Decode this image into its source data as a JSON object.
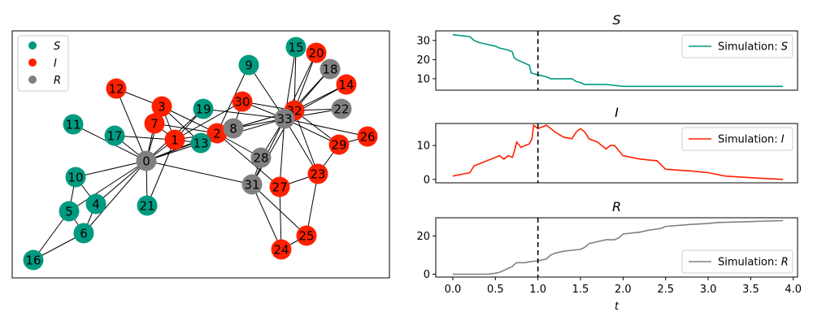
{
  "colors": {
    "S": "#009a80",
    "I": "#ff2000",
    "R": "#808080"
  },
  "network_legend": [
    {
      "key": "S",
      "label": "S"
    },
    {
      "key": "I",
      "label": "I"
    },
    {
      "key": "R",
      "label": "R"
    }
  ],
  "network": {
    "nodes": [
      {
        "id": "0",
        "state": "R",
        "pos": [
          180,
          198
        ]
      },
      {
        "id": "1",
        "state": "I",
        "pos": [
          215,
          172
        ]
      },
      {
        "id": "2",
        "state": "I",
        "pos": [
          267,
          164
        ]
      },
      {
        "id": "3",
        "state": "I",
        "pos": [
          199,
          131
        ]
      },
      {
        "id": "4",
        "state": "S",
        "pos": [
          118,
          251
        ]
      },
      {
        "id": "5",
        "state": "S",
        "pos": [
          85,
          260
        ]
      },
      {
        "id": "6",
        "state": "S",
        "pos": [
          103,
          287
        ]
      },
      {
        "id": "7",
        "state": "I",
        "pos": [
          190,
          152
        ]
      },
      {
        "id": "8",
        "state": "R",
        "pos": [
          287,
          158
        ]
      },
      {
        "id": "9",
        "state": "S",
        "pos": [
          306,
          80
        ]
      },
      {
        "id": "10",
        "state": "S",
        "pos": [
          93,
          218
        ]
      },
      {
        "id": "11",
        "state": "S",
        "pos": [
          90,
          153
        ]
      },
      {
        "id": "12",
        "state": "I",
        "pos": [
          143,
          109
        ]
      },
      {
        "id": "13",
        "state": "S",
        "pos": [
          247,
          176
        ]
      },
      {
        "id": "14",
        "state": "I",
        "pos": [
          426,
          104
        ]
      },
      {
        "id": "15",
        "state": "S",
        "pos": [
          364,
          58
        ]
      },
      {
        "id": "16",
        "state": "S",
        "pos": [
          41,
          320
        ]
      },
      {
        "id": "17",
        "state": "S",
        "pos": [
          141,
          167
        ]
      },
      {
        "id": "18",
        "state": "R",
        "pos": [
          406,
          85
        ]
      },
      {
        "id": "19",
        "state": "S",
        "pos": [
          250,
          134
        ]
      },
      {
        "id": "20",
        "state": "I",
        "pos": [
          389,
          65
        ]
      },
      {
        "id": "21",
        "state": "S",
        "pos": [
          181,
          253
        ]
      },
      {
        "id": "22",
        "state": "R",
        "pos": [
          420,
          134
        ]
      },
      {
        "id": "23",
        "state": "I",
        "pos": [
          391,
          214
        ]
      },
      {
        "id": "24",
        "state": "I",
        "pos": [
          346,
          307
        ]
      },
      {
        "id": "25",
        "state": "I",
        "pos": [
          377,
          290
        ]
      },
      {
        "id": "26",
        "state": "I",
        "pos": [
          452,
          168
        ]
      },
      {
        "id": "27",
        "state": "I",
        "pos": [
          344,
          230
        ]
      },
      {
        "id": "28",
        "state": "R",
        "pos": [
          321,
          194
        ]
      },
      {
        "id": "29",
        "state": "I",
        "pos": [
          417,
          178
        ]
      },
      {
        "id": "30",
        "state": "I",
        "pos": [
          298,
          125
        ]
      },
      {
        "id": "31",
        "state": "R",
        "pos": [
          310,
          227
        ]
      },
      {
        "id": "32",
        "state": "I",
        "pos": [
          362,
          136
        ]
      },
      {
        "id": "33",
        "state": "R",
        "pos": [
          350,
          146
        ]
      }
    ],
    "edges": [
      [
        "0",
        "1"
      ],
      [
        "0",
        "2"
      ],
      [
        "0",
        "3"
      ],
      [
        "0",
        "4"
      ],
      [
        "0",
        "5"
      ],
      [
        "0",
        "6"
      ],
      [
        "0",
        "7"
      ],
      [
        "0",
        "8"
      ],
      [
        "0",
        "10"
      ],
      [
        "0",
        "11"
      ],
      [
        "0",
        "12"
      ],
      [
        "0",
        "13"
      ],
      [
        "0",
        "17"
      ],
      [
        "0",
        "19"
      ],
      [
        "0",
        "21"
      ],
      [
        "0",
        "31"
      ],
      [
        "1",
        "2"
      ],
      [
        "1",
        "3"
      ],
      [
        "1",
        "7"
      ],
      [
        "1",
        "13"
      ],
      [
        "1",
        "17"
      ],
      [
        "1",
        "19"
      ],
      [
        "1",
        "21"
      ],
      [
        "1",
        "30"
      ],
      [
        "2",
        "3"
      ],
      [
        "2",
        "7"
      ],
      [
        "2",
        "8"
      ],
      [
        "2",
        "9"
      ],
      [
        "2",
        "13"
      ],
      [
        "2",
        "27"
      ],
      [
        "2",
        "28"
      ],
      [
        "2",
        "32"
      ],
      [
        "3",
        "7"
      ],
      [
        "3",
        "12"
      ],
      [
        "3",
        "13"
      ],
      [
        "4",
        "6"
      ],
      [
        "4",
        "10"
      ],
      [
        "5",
        "6"
      ],
      [
        "5",
        "10"
      ],
      [
        "5",
        "16"
      ],
      [
        "6",
        "16"
      ],
      [
        "8",
        "30"
      ],
      [
        "8",
        "32"
      ],
      [
        "8",
        "33"
      ],
      [
        "9",
        "33"
      ],
      [
        "13",
        "33"
      ],
      [
        "14",
        "32"
      ],
      [
        "14",
        "33"
      ],
      [
        "15",
        "32"
      ],
      [
        "15",
        "33"
      ],
      [
        "18",
        "32"
      ],
      [
        "18",
        "33"
      ],
      [
        "19",
        "33"
      ],
      [
        "20",
        "32"
      ],
      [
        "20",
        "33"
      ],
      [
        "22",
        "32"
      ],
      [
        "22",
        "33"
      ],
      [
        "23",
        "25"
      ],
      [
        "23",
        "27"
      ],
      [
        "23",
        "29"
      ],
      [
        "23",
        "32"
      ],
      [
        "23",
        "33"
      ],
      [
        "24",
        "25"
      ],
      [
        "24",
        "27"
      ],
      [
        "24",
        "31"
      ],
      [
        "25",
        "31"
      ],
      [
        "26",
        "29"
      ],
      [
        "26",
        "33"
      ],
      [
        "27",
        "33"
      ],
      [
        "28",
        "31"
      ],
      [
        "28",
        "33"
      ],
      [
        "29",
        "32"
      ],
      [
        "29",
        "33"
      ],
      [
        "30",
        "32"
      ],
      [
        "30",
        "33"
      ],
      [
        "31",
        "32"
      ],
      [
        "31",
        "33"
      ],
      [
        "32",
        "33"
      ]
    ]
  },
  "chart_data": [
    {
      "type": "line",
      "title": "S",
      "legend_label": "Simulation: S",
      "legend_prefix": "Simulation: ",
      "legend_var": "S",
      "legend_placement": "top-right",
      "color_key": "S",
      "xlim": [
        -0.2,
        4.05
      ],
      "ylim": [
        4,
        35
      ],
      "yticks": [
        10,
        20,
        30
      ],
      "vline_x": 1.0,
      "x": [
        0.0,
        0.1,
        0.2,
        0.25,
        0.3,
        0.4,
        0.45,
        0.5,
        0.55,
        0.6,
        0.65,
        0.7,
        0.72,
        0.75,
        0.8,
        0.85,
        0.9,
        0.92,
        1.0,
        1.05,
        1.1,
        1.15,
        1.2,
        1.3,
        1.4,
        1.45,
        1.5,
        1.55,
        1.6,
        1.8,
        1.9,
        2.0,
        2.2,
        2.5,
        3.0,
        3.5,
        3.88
      ],
      "y": [
        33,
        32.5,
        32,
        30,
        29,
        28,
        27.5,
        27,
        26,
        25.5,
        25,
        24,
        21,
        20,
        19,
        18,
        17,
        13,
        12,
        11.5,
        11,
        10,
        10,
        10,
        10,
        8.5,
        8,
        7,
        7,
        7,
        6.5,
        6,
        6,
        6,
        6,
        6,
        6
      ]
    },
    {
      "type": "line",
      "title": "I",
      "legend_label": "Simulation: I",
      "legend_prefix": "Simulation: ",
      "legend_var": "I",
      "legend_placement": "top-right",
      "color_key": "I",
      "xlim": [
        -0.2,
        4.05
      ],
      "ylim": [
        -1,
        16.5
      ],
      "yticks": [
        0,
        10
      ],
      "vline_x": 1.0,
      "x": [
        0.0,
        0.1,
        0.2,
        0.25,
        0.3,
        0.4,
        0.5,
        0.55,
        0.6,
        0.65,
        0.7,
        0.72,
        0.75,
        0.8,
        0.85,
        0.9,
        0.93,
        0.95,
        1.0,
        1.05,
        1.1,
        1.15,
        1.2,
        1.3,
        1.4,
        1.45,
        1.5,
        1.55,
        1.6,
        1.7,
        1.8,
        1.85,
        1.9,
        1.95,
        2.0,
        2.2,
        2.4,
        2.5,
        2.8,
        3.0,
        3.2,
        3.5,
        3.88
      ],
      "y": [
        1,
        1.5,
        2,
        4,
        4.5,
        5.5,
        6.5,
        7,
        6,
        7,
        6.5,
        8,
        11,
        9.5,
        10,
        10.5,
        12,
        16,
        15,
        15.5,
        16,
        15,
        14,
        12.5,
        12,
        14,
        15,
        14,
        12,
        11,
        9,
        10,
        10,
        8.5,
        7,
        6,
        5.5,
        3,
        2.5,
        2,
        1,
        0.5,
        0
      ]
    },
    {
      "type": "line",
      "title": "R",
      "legend_label": "Simulation: R",
      "legend_prefix": "Simulation: ",
      "legend_var": "R",
      "legend_placement": "bottom-right",
      "color_key": "R",
      "xlim": [
        -0.2,
        4.05
      ],
      "ylim": [
        -1.5,
        29.5
      ],
      "yticks": [
        0,
        20
      ],
      "vline_x": 1.0,
      "xlabel": "t",
      "xticks": [
        0.0,
        0.5,
        1.0,
        1.5,
        2.0,
        2.5,
        3.0,
        3.5,
        4.0
      ],
      "xtick_labels": [
        "0.0",
        "0.5",
        "1.0",
        "1.5",
        "2.0",
        "2.5",
        "3.0",
        "3.5",
        "4.0"
      ],
      "x": [
        0.0,
        0.2,
        0.4,
        0.5,
        0.55,
        0.6,
        0.65,
        0.7,
        0.72,
        0.75,
        0.85,
        0.9,
        1.0,
        1.1,
        1.15,
        1.2,
        1.3,
        1.4,
        1.5,
        1.55,
        1.6,
        1.7,
        1.8,
        1.9,
        1.95,
        2.0,
        2.2,
        2.3,
        2.45,
        2.5,
        2.8,
        3.0,
        3.1,
        3.5,
        3.88
      ],
      "y": [
        0,
        0,
        0,
        0.5,
        1,
        2,
        3,
        4,
        5,
        6,
        6,
        6.5,
        7,
        8,
        10,
        11,
        12,
        12.5,
        13,
        14,
        16,
        17,
        18,
        18,
        19,
        21,
        22,
        23,
        24,
        25,
        26,
        26.5,
        27,
        27.5,
        28
      ]
    }
  ]
}
